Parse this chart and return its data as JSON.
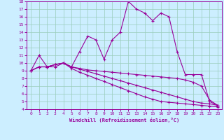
{
  "xlabel": "Windchill (Refroidissement éolien,°C)",
  "bg_color": "#cceeff",
  "grid_color": "#99ccbb",
  "line_color": "#990099",
  "xlim": [
    -0.5,
    23.5
  ],
  "ylim": [
    4,
    18
  ],
  "xticks": [
    0,
    1,
    2,
    3,
    4,
    5,
    6,
    7,
    8,
    9,
    10,
    11,
    12,
    13,
    14,
    15,
    16,
    17,
    18,
    19,
    20,
    21,
    22,
    23
  ],
  "yticks": [
    4,
    5,
    6,
    7,
    8,
    9,
    10,
    11,
    12,
    13,
    14,
    15,
    16,
    17,
    18
  ],
  "line1_x": [
    0,
    1,
    2,
    3,
    4,
    5,
    6,
    7,
    8,
    9,
    10,
    11,
    12,
    13,
    14,
    15,
    16,
    17,
    18,
    19,
    20,
    21,
    22,
    23
  ],
  "line1_y": [
    9.0,
    11.0,
    9.5,
    9.5,
    10.0,
    9.5,
    11.5,
    13.5,
    13.0,
    10.5,
    13.0,
    14.0,
    18.0,
    17.0,
    16.5,
    15.5,
    16.5,
    16.0,
    11.5,
    8.5,
    8.5,
    8.5,
    5.0,
    4.5
  ],
  "line2_x": [
    0,
    1,
    2,
    3,
    4,
    5,
    6,
    7,
    8,
    9,
    10,
    11,
    12,
    13,
    14,
    15,
    16,
    17,
    18,
    19,
    20,
    21,
    22,
    23
  ],
  "line2_y": [
    9.0,
    9.5,
    9.5,
    9.8,
    10.0,
    9.5,
    9.3,
    9.1,
    9.0,
    8.9,
    8.8,
    8.7,
    8.6,
    8.5,
    8.4,
    8.3,
    8.2,
    8.1,
    8.0,
    7.8,
    7.5,
    7.0,
    5.2,
    4.5
  ],
  "line3_x": [
    0,
    1,
    2,
    3,
    4,
    5,
    6,
    7,
    8,
    9,
    10,
    11,
    12,
    13,
    14,
    15,
    16,
    17,
    18,
    19,
    20,
    21,
    22,
    23
  ],
  "line3_y": [
    9.0,
    9.5,
    9.5,
    9.8,
    10.0,
    9.5,
    9.2,
    8.9,
    8.6,
    8.3,
    8.0,
    7.7,
    7.4,
    7.1,
    6.8,
    6.5,
    6.2,
    5.9,
    5.6,
    5.3,
    5.0,
    4.8,
    4.7,
    4.5
  ],
  "line4_x": [
    0,
    1,
    2,
    3,
    4,
    5,
    6,
    7,
    8,
    9,
    10,
    11,
    12,
    13,
    14,
    15,
    16,
    17,
    18,
    19,
    20,
    21,
    22,
    23
  ],
  "line4_y": [
    9.0,
    9.5,
    9.5,
    9.8,
    10.0,
    9.3,
    8.8,
    8.4,
    8.0,
    7.6,
    7.2,
    6.8,
    6.4,
    6.0,
    5.6,
    5.3,
    5.0,
    4.9,
    4.8,
    4.7,
    4.6,
    4.5,
    4.4,
    4.3
  ]
}
